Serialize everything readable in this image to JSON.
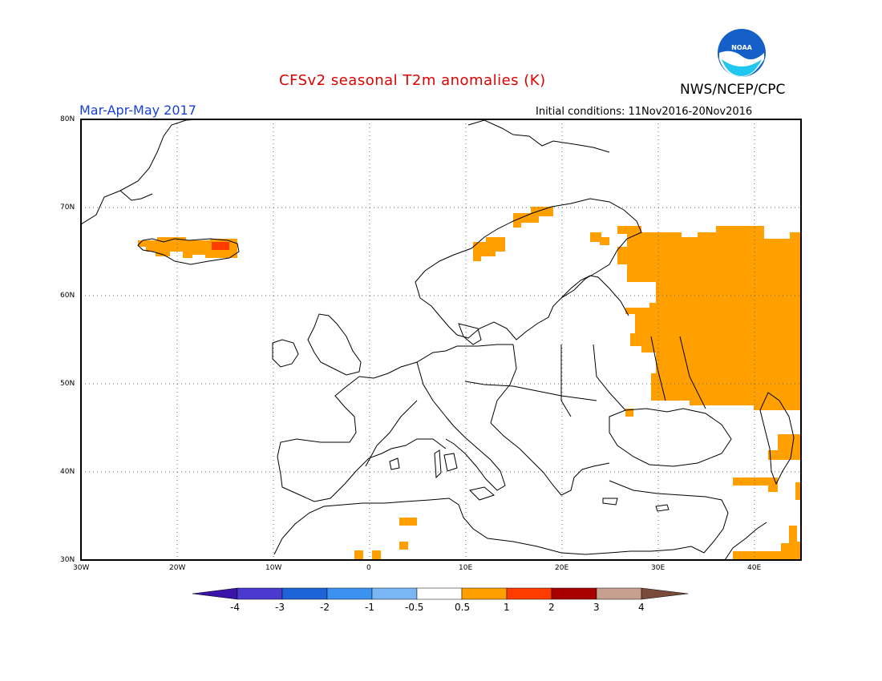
{
  "title": "CFSv2 seasonal T2m anomalies (K)",
  "agency": "NWS/NCEP/CPC",
  "logo_text": "NOAA",
  "period": "Mar-Apr-May 2017",
  "initial_conditions": "Initial conditions: 11Nov2016-20Nov2016",
  "map": {
    "projection": "lat-lon",
    "lon_range": [
      -30,
      45
    ],
    "lat_range": [
      30,
      80
    ],
    "lat_labels": [
      "80N",
      "70N",
      "60N",
      "50N",
      "40N",
      "30N"
    ],
    "lon_labels": [
      "30W",
      "20W",
      "10W",
      "0",
      "10E",
      "20E",
      "30E",
      "40E"
    ],
    "grid": "dotted"
  },
  "colorbar": {
    "labels": [
      "-4",
      "-3",
      "-2",
      "-1",
      "-0.5",
      "0.5",
      "1",
      "2",
      "3",
      "4"
    ],
    "colors": [
      "#3a14a8",
      "#4a3ad0",
      "#1c64d8",
      "#3c92f0",
      "#7ab6f4",
      "#ffffff",
      "#ffa000",
      "#ff3c00",
      "#a80000",
      "#c8a090",
      "#7a4a3a"
    ]
  },
  "chart_data": {
    "type": "heatmap",
    "variable": "T2m anomaly (K)",
    "anomaly_classes_present": [
      "0.5 to 1",
      "1 to 2"
    ],
    "regions": [
      {
        "area": "Western Russia / Ukraine / Belarus east",
        "class": "0.5 to 1"
      },
      {
        "area": "Iceland",
        "class": "0.5 to 1",
        "note": "small 1 to 2 patch in southeast"
      },
      {
        "area": "Northern Norway coast",
        "class": "0.5 to 1"
      },
      {
        "area": "Kola peninsula / White Sea",
        "class": "0.5 to 1"
      },
      {
        "area": "Caucasus / eastern Black Sea",
        "class": "0.5 to 1"
      },
      {
        "area": "Eastern Turkey",
        "class": "0.5 to 1"
      },
      {
        "area": "Middle East / southeast corner",
        "class": "0.5 to 1"
      },
      {
        "area": "Algeria / North Africa (isolated cells)",
        "class": "0.5 to 1"
      }
    ]
  }
}
